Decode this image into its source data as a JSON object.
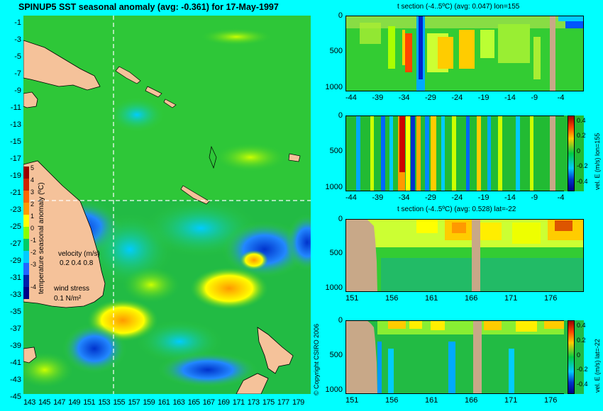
{
  "main_title": "SPINUP5 SST seasonal anomaly (avg: -0.361) for 17-May-1997",
  "map": {
    "lat_ticks": [
      "-1",
      "-3",
      "-5",
      "-7",
      "-9",
      "-11",
      "-13",
      "-15",
      "-17",
      "-19",
      "-21",
      "-23",
      "-25",
      "-27",
      "-29",
      "-31",
      "-33",
      "-35",
      "-37",
      "-39",
      "-41",
      "-43",
      "-45"
    ],
    "lon_ticks": [
      "143",
      "145",
      "147",
      "149",
      "151",
      "153",
      "155",
      "157",
      "159",
      "161",
      "163",
      "165",
      "167",
      "169",
      "171",
      "173",
      "175",
      "177",
      "179"
    ],
    "colorbar_ticks": [
      "5",
      "4",
      "3",
      "2",
      "1",
      "0",
      "-1",
      "-2",
      "-3",
      "-4"
    ],
    "colorbar_label": "temperature seasonal anomaly (ºC)",
    "velocity_label": "velocity (m/s)",
    "velocity_scale": "0.2 0.4 0.8",
    "wind_label": "wind stress",
    "wind_scale": "0.1 N/m²",
    "copyright": "© Copyright CSIRO 2006",
    "crosshair_lon": 155,
    "crosshair_lat": -22
  },
  "panels": [
    {
      "title": "t section (-4..5ºC) (avg: 0.047) lon=155",
      "x_ticks": [
        "-44",
        "-39",
        "-34",
        "-29",
        "-24",
        "-19",
        "-14",
        "-9",
        "-4"
      ],
      "y_ticks": [
        "0",
        "500",
        "1000"
      ],
      "side_label": "",
      "colorbar_ticks": []
    },
    {
      "title": "",
      "x_ticks": [
        "-44",
        "-39",
        "-34",
        "-29",
        "-24",
        "-19",
        "-14",
        "-9",
        "-4"
      ],
      "y_ticks": [
        "0",
        "500",
        "1000"
      ],
      "side_label": "vel. E (m/s) lon=155",
      "colorbar_ticks": [
        "0.4",
        "0.2",
        "0",
        "-0.2",
        "-0.4"
      ]
    },
    {
      "title": "t section (-4..5ºC) (avg: 0.528) lat=-22",
      "x_ticks": [
        "151",
        "156",
        "161",
        "166",
        "171",
        "176"
      ],
      "y_ticks": [
        "0",
        "500",
        "1000"
      ],
      "side_label": "",
      "colorbar_ticks": []
    },
    {
      "title": "",
      "x_ticks": [
        "151",
        "156",
        "161",
        "166",
        "171",
        "176"
      ],
      "y_ticks": [
        "0",
        "500",
        "1000"
      ],
      "side_label": "vel. E (m/s) lat=-22",
      "colorbar_ticks": [
        "0.4",
        "0.2",
        "0",
        "-0.2",
        "-0.4"
      ]
    }
  ],
  "colors": {
    "background": "#00ffff",
    "ocean": "#33cc33",
    "land": "#f5c29a",
    "section_land": "#c8a888",
    "warm": "#ffcc00",
    "hot": "#cc2200",
    "cold": "#0033cc",
    "crosshair": "#ffffff"
  },
  "chart_data": [
    {
      "type": "heatmap",
      "title": "SPINUP5 SST seasonal anomaly (avg: -0.361) for 17-May-1997",
      "xlabel": "",
      "ylabel": "",
      "xlim": [
        143,
        179
      ],
      "ylim": [
        -45,
        -1
      ],
      "colorbar_range": [
        -4,
        5
      ]
    },
    {
      "type": "heatmap",
      "title": "t section (-4..5ºC) (avg: 0.047) lon=155",
      "xlim": [
        -44,
        -1
      ],
      "ylim": [
        1000,
        0
      ]
    },
    {
      "type": "heatmap",
      "title": "",
      "colorbar_label": "vel. E (m/s) lon=155",
      "xlim": [
        -44,
        -1
      ],
      "ylim": [
        1000,
        0
      ],
      "colorbar_range": [
        -0.4,
        0.4
      ]
    },
    {
      "type": "heatmap",
      "title": "t section (-4..5ºC) (avg: 0.528) lat=-22",
      "xlim": [
        150,
        180
      ],
      "ylim": [
        1000,
        0
      ]
    },
    {
      "type": "heatmap",
      "title": "",
      "colorbar_label": "vel. E (m/s) lat=-22",
      "xlim": [
        150,
        180
      ],
      "ylim": [
        1000,
        0
      ],
      "colorbar_range": [
        -0.4,
        0.4
      ]
    }
  ]
}
